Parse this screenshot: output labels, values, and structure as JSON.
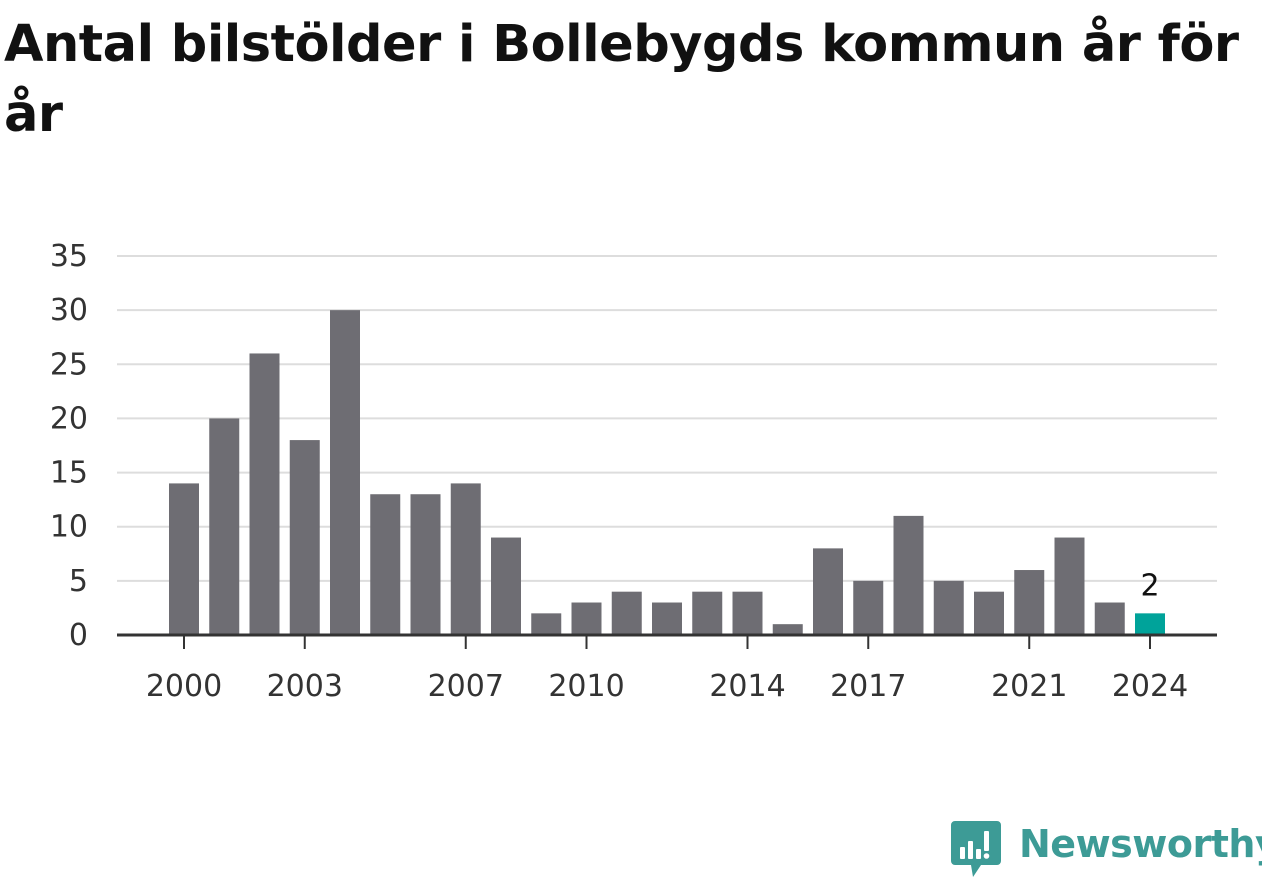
{
  "chart_data": {
    "type": "bar",
    "title": "Antal bilstölder i Bollebygds kommun år för år",
    "xlabel": "",
    "ylabel": "",
    "categories": [
      "2000",
      "2001",
      "2002",
      "2003",
      "2004",
      "2005",
      "2006",
      "2007",
      "2008",
      "2009",
      "2010",
      "2011",
      "2012",
      "2013",
      "2014",
      "2015",
      "2016",
      "2017",
      "2018",
      "2019",
      "2020",
      "2021",
      "2022",
      "2023",
      "2024"
    ],
    "values": [
      14,
      20,
      26,
      18,
      30,
      13,
      13,
      14,
      9,
      2,
      3,
      4,
      3,
      4,
      4,
      1,
      8,
      5,
      11,
      5,
      4,
      6,
      9,
      3,
      2
    ],
    "x_tick_labels": [
      "2000",
      "2003",
      "2007",
      "2010",
      "2014",
      "2017",
      "2021",
      "2024"
    ],
    "y_ticks": [
      0,
      5,
      10,
      15,
      20,
      25,
      30,
      35
    ],
    "ylim": [
      0,
      35
    ],
    "grid": true,
    "legend": "none",
    "highlight": {
      "category": "2024",
      "value_label": "2"
    },
    "colors": {
      "bar": "#6e6d73",
      "highlight": "#00a39a",
      "grid": "#dddddd",
      "axis": "#333333",
      "text": "#333333"
    }
  },
  "brand": {
    "name": "Newsworthy",
    "icon": "newsworthy-logo-icon",
    "color": "#3d9b96"
  }
}
